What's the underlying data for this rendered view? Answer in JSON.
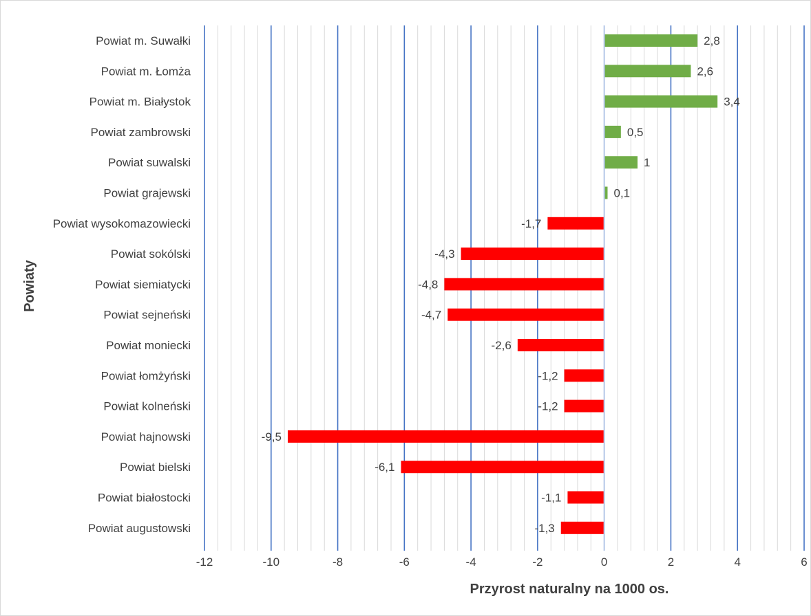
{
  "chart_data": {
    "type": "bar",
    "orientation": "horizontal",
    "xlabel": "Przyrost naturalny na 1000 os.",
    "ylabel": "Powiaty",
    "xlim": [
      -12,
      6
    ],
    "major_tick_step": 2,
    "minor_tick_step": 0.4,
    "grid": true,
    "legend": "none",
    "positive_color": "#70ad47",
    "negative_color": "#ff0000",
    "major_grid_color": "#4472c4",
    "minor_grid_color": "#d9d9d9",
    "tick_labels": [
      "-12",
      "-10",
      "-8",
      "-6",
      "-4",
      "-2",
      "0",
      "2",
      "4",
      "6"
    ],
    "categories": [
      "Powiat m. Suwałki",
      "Powiat m. Łomża",
      "Powiat m. Białystok",
      "Powiat zambrowski",
      "Powiat suwalski",
      "Powiat grajewski",
      "Powiat wysokomazowiecki",
      "Powiat sokólski",
      "Powiat siemiatycki",
      "Powiat sejneński",
      "Powiat moniecki",
      "Powiat łomżyński",
      "Powiat kolneński",
      "Powiat hajnowski",
      "Powiat bielski",
      "Powiat białostocki",
      "Powiat augustowski"
    ],
    "values": [
      2.8,
      2.6,
      3.4,
      0.5,
      1,
      0.1,
      -1.7,
      -4.3,
      -4.8,
      -4.7,
      -2.6,
      -1.2,
      -1.2,
      -9.5,
      -6.1,
      -1.1,
      -1.3
    ],
    "value_labels": [
      "2,8",
      "2,6",
      "3,4",
      "0,5",
      "1",
      "0,1",
      "-1,7",
      "-4,3",
      "-4,8",
      "-4,7",
      "-2,6",
      "-1,2",
      "-1,2",
      "-9,5",
      "-6,1",
      "-1,1",
      "-1,3"
    ]
  }
}
